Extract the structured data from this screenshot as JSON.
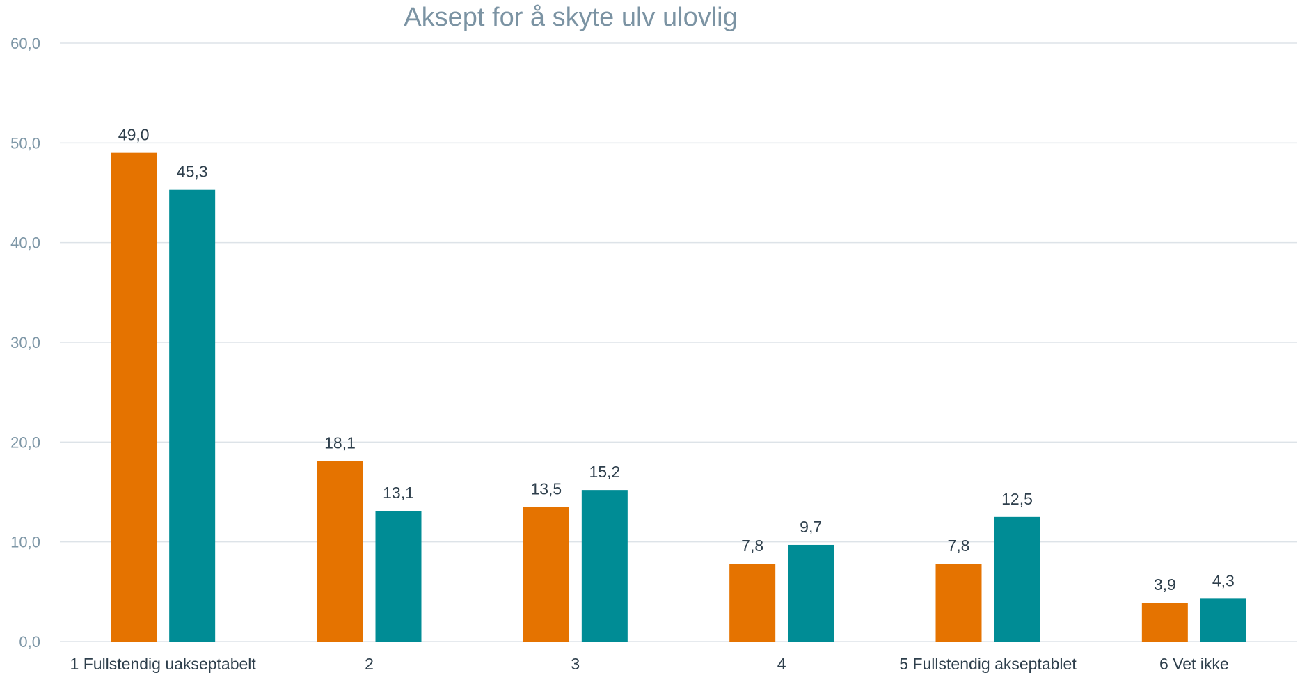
{
  "chart_data": {
    "type": "bar",
    "title": "Aksept for å skyte ulv ulovlig",
    "categories": [
      "1 Fullstendig uakseptabelt",
      "2",
      "3",
      "4",
      "5 Fullstendig akseptablet",
      "6 Vet ikke"
    ],
    "series": [
      {
        "values": [
          49.0,
          18.1,
          13.5,
          7.8,
          7.8,
          3.9
        ],
        "color": "#e57300",
        "labels": [
          "49,0",
          "18,1",
          "13,5",
          "7,8",
          "7,8",
          "3,9"
        ]
      },
      {
        "values": [
          45.3,
          13.1,
          15.2,
          9.7,
          12.5,
          4.3
        ],
        "color": "#008c95",
        "labels": [
          "45,3",
          "13,1",
          "15,2",
          "9,7",
          "12,5",
          "4,3"
        ]
      }
    ],
    "ylim": [
      0,
      60
    ],
    "yticks": [
      "0,0",
      "10,0",
      "20,0",
      "30,0",
      "40,0",
      "50,0",
      "60,0"
    ],
    "grid": true,
    "gridColor": "#dde3e8"
  }
}
